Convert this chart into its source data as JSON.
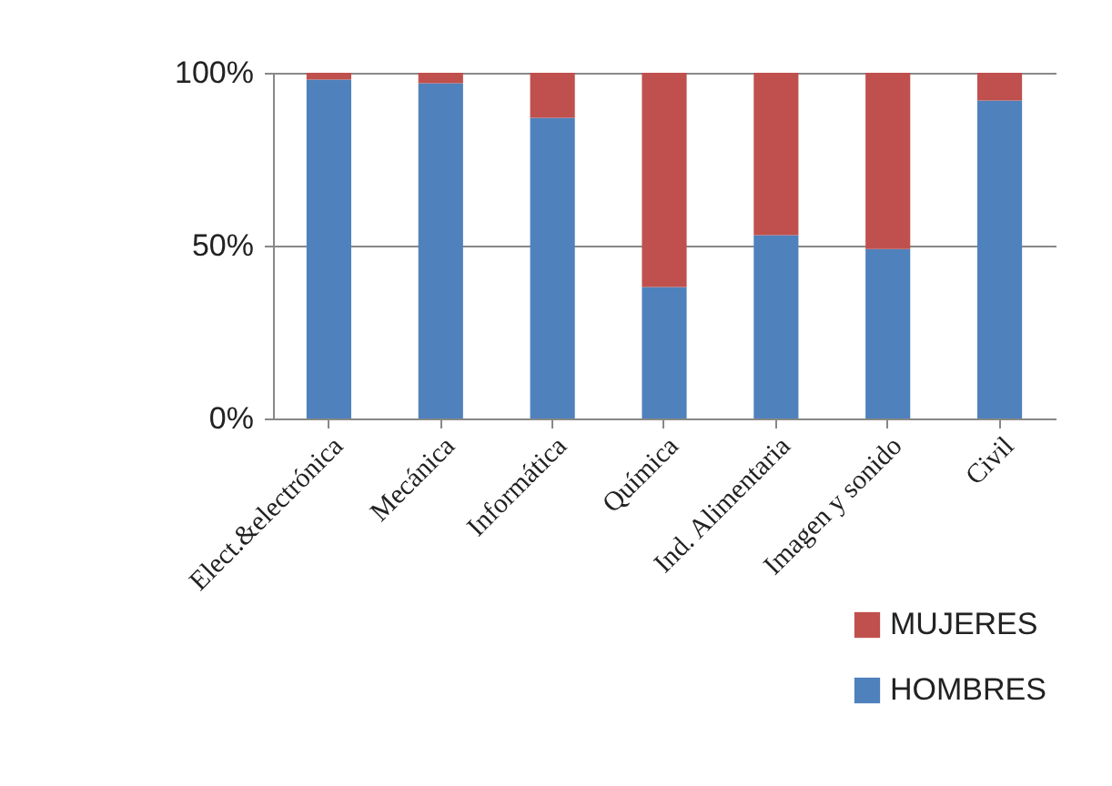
{
  "chart_data": {
    "type": "bar",
    "stacked": true,
    "categories": [
      "Elect.&electrónica",
      "Mecánica",
      "Informática",
      "Química",
      "Ind. Alimentaria",
      "Imagen y sonido",
      "Civil"
    ],
    "series": [
      {
        "name": "HOMBRES",
        "color": "#4f81bd",
        "values": [
          98,
          97,
          87,
          38,
          53,
          49,
          92
        ]
      },
      {
        "name": "MUJERES",
        "color": "#c0504d",
        "values": [
          2,
          3,
          13,
          62,
          47,
          51,
          8
        ]
      }
    ],
    "ylim": [
      0,
      100
    ],
    "yticks": [
      {
        "value": 0,
        "label": "0%"
      },
      {
        "value": 50,
        "label": "50%"
      },
      {
        "value": 100,
        "label": "100%"
      }
    ],
    "grid": "y",
    "legend": "bottom right"
  }
}
